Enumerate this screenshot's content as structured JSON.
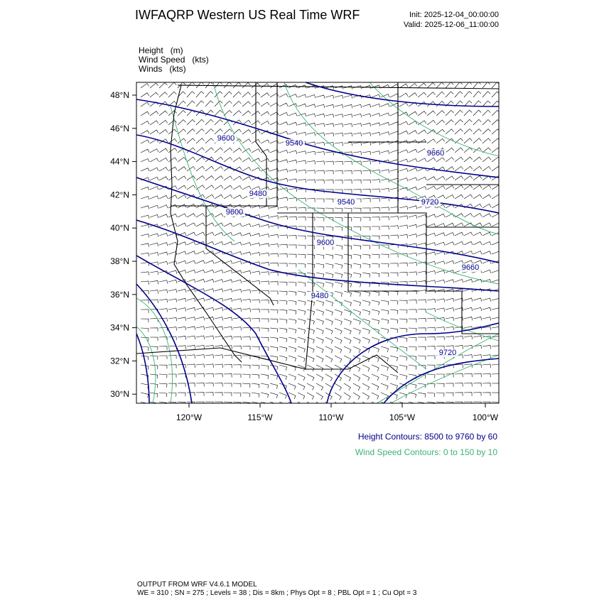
{
  "header": {
    "title": "IWFAQRP Western US Real Time WRF",
    "init": "Init: 2025-12-04_00:00:00",
    "valid": "Valid: 2025-12-06_11:00:00"
  },
  "fields": [
    "Height   (m)",
    "Wind Speed   (kts)",
    "Winds   (kts)"
  ],
  "map": {
    "lat_labels": [
      "48°N",
      "46°N",
      "44°N",
      "42°N",
      "40°N",
      "38°N",
      "36°N",
      "34°N",
      "32°N",
      "30°N"
    ],
    "lon_labels": [
      "120°W",
      "115°W",
      "110°W",
      "105°W",
      "100°W"
    ],
    "contour_labels": [
      "9600",
      "9540",
      "9660",
      "9720",
      "9480",
      "9600",
      "9540",
      "9600",
      "9660",
      "9480",
      "9720"
    ]
  },
  "legend": [
    "Height Contours: 8500 to 9760 by 60",
    "Wind Speed Contours: 0 to 150 by 10"
  ],
  "footer": [
    "OUTPUT FROM WRF V4.6.1 MODEL",
    "WE = 310 ; SN = 275 ; Levels = 38 ; Dis = 8km ; Phys Opt = 8 ; PBL Opt = 1 ; Cu Opt = 3"
  ]
}
